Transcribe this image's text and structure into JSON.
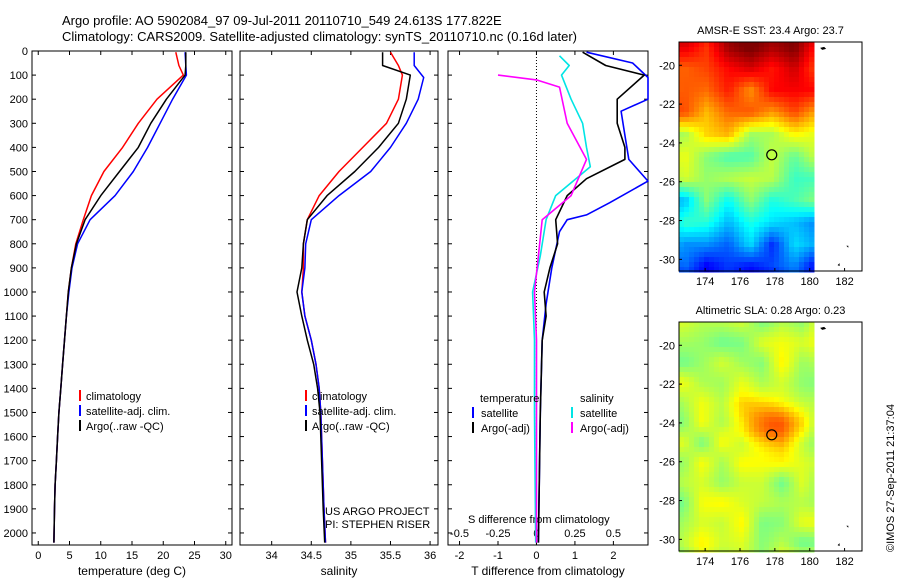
{
  "header": {
    "line1": "Argo profile: AO 5902084_97 09-Jul-2011 20110710_549 24.613S 177.822E",
    "line2": "Climatology: CARS2009. Satellite-adjusted climatology: synTS_20110710.nc (0.16d later)"
  },
  "side_label": "©IMOS 27-Sep-2011 21:37:04",
  "credit": [
    "US ARGO PROJECT",
    "PI: STEPHEN RISER"
  ],
  "colors": {
    "clim": "#ff0000",
    "sat": "#0000ff",
    "argo": "#000000",
    "sat_s": "#00e5e5",
    "argo_s": "#ff00ff"
  },
  "chart_data": [
    {
      "type": "line",
      "id": "temperature",
      "xlabel": "temperature (deg C)",
      "ylabel": "",
      "xlim": [
        -1,
        31
      ],
      "ylim": [
        2050,
        0
      ],
      "xticks": [
        0,
        5,
        10,
        15,
        20,
        25,
        30
      ],
      "yticks": [
        0,
        100,
        200,
        300,
        400,
        500,
        600,
        700,
        800,
        900,
        1000,
        1100,
        1200,
        1300,
        1400,
        1500,
        1600,
        1700,
        1800,
        1900,
        2000
      ],
      "legend": [
        "climatology",
        "satellite-adj. clim.",
        "Argo(..raw -QC)"
      ],
      "series": [
        {
          "name": "climatology",
          "color": "#ff0000",
          "points": [
            [
              22.0,
              5
            ],
            [
              22.5,
              60
            ],
            [
              23.2,
              100
            ],
            [
              19,
              200
            ],
            [
              16,
              300
            ],
            [
              13.5,
              400
            ],
            [
              10.5,
              500
            ],
            [
              8.5,
              600
            ],
            [
              7.2,
              700
            ],
            [
              6,
              800
            ],
            [
              5.3,
              900
            ],
            [
              4.8,
              1000
            ],
            [
              4.5,
              1100
            ],
            [
              4.2,
              1200
            ],
            [
              3.9,
              1300
            ],
            [
              3.6,
              1400
            ],
            [
              3.3,
              1500
            ],
            [
              3.1,
              1600
            ],
            [
              2.9,
              1700
            ],
            [
              2.7,
              1800
            ],
            [
              2.6,
              1900
            ],
            [
              2.5,
              2040
            ]
          ]
        },
        {
          "name": "satellite-adj. clim.",
          "color": "#0000ff",
          "points": [
            [
              23.5,
              5
            ],
            [
              23.6,
              60
            ],
            [
              23.7,
              100
            ],
            [
              21.5,
              200
            ],
            [
              19.5,
              300
            ],
            [
              17.5,
              400
            ],
            [
              15.2,
              500
            ],
            [
              12.3,
              600
            ],
            [
              8.3,
              700
            ],
            [
              6.3,
              800
            ],
            [
              5.4,
              900
            ],
            [
              4.9,
              1000
            ],
            [
              4.5,
              1100
            ],
            [
              4.2,
              1200
            ],
            [
              3.9,
              1300
            ],
            [
              3.6,
              1400
            ],
            [
              3.3,
              1500
            ],
            [
              3.1,
              1600
            ],
            [
              2.9,
              1700
            ],
            [
              2.7,
              1800
            ],
            [
              2.6,
              1900
            ],
            [
              2.5,
              2040
            ]
          ]
        },
        {
          "name": "Argo(..raw -QC)",
          "color": "#000000",
          "points": [
            [
              23.6,
              5
            ],
            [
              23.6,
              60
            ],
            [
              23.5,
              100
            ],
            [
              20.5,
              200
            ],
            [
              18,
              300
            ],
            [
              16,
              400
            ],
            [
              13,
              500
            ],
            [
              10,
              600
            ],
            [
              7.5,
              700
            ],
            [
              6.1,
              800
            ],
            [
              5.3,
              900
            ],
            [
              4.8,
              1000
            ],
            [
              4.5,
              1100
            ],
            [
              4.2,
              1200
            ],
            [
              3.9,
              1300
            ],
            [
              3.6,
              1400
            ],
            [
              3.3,
              1500
            ],
            [
              3.1,
              1600
            ],
            [
              2.9,
              1700
            ],
            [
              2.7,
              1800
            ],
            [
              2.6,
              1900
            ],
            [
              2.5,
              2040
            ]
          ]
        }
      ]
    },
    {
      "type": "line",
      "id": "salinity",
      "xlabel": "salinity",
      "ylabel": "",
      "xlim": [
        33.6,
        36.1
      ],
      "ylim": [
        2050,
        0
      ],
      "xticks": [
        34,
        34.5,
        35,
        35.5,
        36
      ],
      "legend": [
        "climatology",
        "satellite-adj. clim.",
        "Argo(..raw -QC)"
      ],
      "series": [
        {
          "name": "climatology",
          "color": "#ff0000",
          "points": [
            [
              35.5,
              5
            ],
            [
              35.6,
              60
            ],
            [
              35.65,
              100
            ],
            [
              35.6,
              200
            ],
            [
              35.45,
              300
            ],
            [
              35.15,
              400
            ],
            [
              34.85,
              500
            ],
            [
              34.6,
              600
            ],
            [
              34.45,
              700
            ],
            [
              34.4,
              800
            ],
            [
              34.4,
              900
            ],
            [
              34.38,
              1000
            ],
            [
              34.42,
              1100
            ],
            [
              34.5,
              1200
            ],
            [
              34.56,
              1300
            ],
            [
              34.6,
              1400
            ],
            [
              34.62,
              1500
            ],
            [
              34.64,
              1700
            ],
            [
              34.66,
              1900
            ],
            [
              34.68,
              2040
            ]
          ]
        },
        {
          "name": "satellite-adj. clim.",
          "color": "#0000ff",
          "points": [
            [
              35.8,
              5
            ],
            [
              35.8,
              60
            ],
            [
              35.92,
              110
            ],
            [
              35.85,
              200
            ],
            [
              35.7,
              300
            ],
            [
              35.5,
              400
            ],
            [
              35.25,
              500
            ],
            [
              34.85,
              600
            ],
            [
              34.5,
              700
            ],
            [
              34.43,
              800
            ],
            [
              34.42,
              900
            ],
            [
              34.38,
              1000
            ],
            [
              34.42,
              1100
            ],
            [
              34.5,
              1200
            ],
            [
              34.56,
              1300
            ],
            [
              34.6,
              1400
            ],
            [
              34.62,
              1500
            ],
            [
              34.64,
              1700
            ],
            [
              34.66,
              1900
            ],
            [
              34.68,
              2040
            ]
          ]
        },
        {
          "name": "Argo(..raw -QC)",
          "color": "#000000",
          "points": [
            [
              35.4,
              5
            ],
            [
              35.4,
              60
            ],
            [
              35.75,
              100
            ],
            [
              35.7,
              200
            ],
            [
              35.6,
              300
            ],
            [
              35.35,
              400
            ],
            [
              35.05,
              500
            ],
            [
              34.7,
              600
            ],
            [
              34.45,
              700
            ],
            [
              34.4,
              800
            ],
            [
              34.38,
              900
            ],
            [
              34.32,
              1000
            ],
            [
              34.38,
              1100
            ],
            [
              34.45,
              1200
            ],
            [
              34.53,
              1300
            ],
            [
              34.58,
              1400
            ],
            [
              34.61,
              1500
            ],
            [
              34.63,
              1700
            ],
            [
              34.65,
              1900
            ],
            [
              34.67,
              2040
            ]
          ]
        }
      ]
    },
    {
      "type": "line",
      "id": "difference",
      "xlabel": "T difference from climatology",
      "xlabel_top": "S difference from climatology",
      "xlim": [
        -2.3,
        2.9
      ],
      "ylim": [
        2050,
        0
      ],
      "xticks": [
        -2,
        -1,
        0,
        1,
        2
      ],
      "xticks_s": [
        -0.5,
        -0.25,
        0,
        0.25,
        0.5
      ],
      "xticks_s_labels": [
        "-0.5",
        "-0.25",
        "0",
        "0.25",
        "0.5"
      ],
      "legend_headers": [
        "temperature",
        "salinity"
      ],
      "legend": [
        "satellite",
        "Argo(-adj)",
        "satellite",
        "Argo(-adj)"
      ],
      "series": [
        {
          "name": "T satellite",
          "color": "#0000ff",
          "points": [
            [
              1.3,
              5
            ],
            [
              2.5,
              50
            ],
            [
              2.9,
              110
            ],
            [
              2.9,
              200
            ],
            [
              2.2,
              250
            ],
            [
              2.3,
              350
            ],
            [
              2.4,
              450
            ],
            [
              2.9,
              540
            ],
            [
              1.9,
              630
            ],
            [
              1.3,
              680
            ],
            [
              0.8,
              700
            ],
            [
              0.6,
              750
            ],
            [
              0.4,
              900
            ],
            [
              0.25,
              1050
            ],
            [
              0.15,
              1200
            ],
            [
              0.1,
              1500
            ],
            [
              0.05,
              2040
            ]
          ]
        },
        {
          "name": "T Argo(-adj)",
          "color": "#000000",
          "points": [
            [
              1.2,
              5
            ],
            [
              1.8,
              60
            ],
            [
              2.8,
              100
            ],
            [
              2.1,
              200
            ],
            [
              2.1,
              300
            ],
            [
              2.3,
              400
            ],
            [
              2.3,
              450
            ],
            [
              1.3,
              530
            ],
            [
              0.8,
              600
            ],
            [
              0.5,
              700
            ],
            [
              0.55,
              800
            ],
            [
              0.35,
              900
            ],
            [
              0.2,
              1000
            ],
            [
              0.25,
              1100
            ],
            [
              0.15,
              1200
            ],
            [
              0.1,
              1500
            ],
            [
              0.05,
              2040
            ]
          ]
        },
        {
          "name": "S satellite",
          "color": "#00e5e5",
          "points": [
            [
              0.6,
              20
            ],
            [
              0.85,
              60
            ],
            [
              0.65,
              100
            ],
            [
              0.9,
              200
            ],
            [
              1.2,
              300
            ],
            [
              1.3,
              400
            ],
            [
              1.4,
              480
            ],
            [
              0.5,
              600
            ],
            [
              0.25,
              700
            ],
            [
              0.1,
              850
            ],
            [
              -0.1,
              1000
            ],
            [
              -0.05,
              1200
            ],
            [
              -0.05,
              1500
            ],
            [
              -0.02,
              2040
            ]
          ]
        },
        {
          "name": "S Argo(-adj)",
          "color": "#ff00ff",
          "points": [
            [
              -1,
              100
            ],
            [
              0,
              120
            ],
            [
              0.6,
              150
            ],
            [
              0.8,
              300
            ],
            [
              1.3,
              450
            ],
            [
              0.9,
              600
            ],
            [
              0.15,
              700
            ],
            [
              0.05,
              850
            ],
            [
              -0.05,
              1000
            ],
            [
              0,
              1200
            ],
            [
              0,
              1500
            ],
            [
              0,
              2040
            ]
          ]
        }
      ]
    },
    {
      "type": "heatmap",
      "id": "sst",
      "title": "AMSR-E SST: 23.4 Argo: 23.7",
      "xlim": [
        172.5,
        183
      ],
      "ylim": [
        -30.6,
        -18.8
      ],
      "xticks": [
        174,
        176,
        178,
        180,
        182
      ],
      "yticks": [
        -20,
        -22,
        -24,
        -26,
        -28,
        -30
      ],
      "data_xlim": [
        172.5,
        180
      ],
      "marker": [
        177.822,
        -24.613
      ]
    },
    {
      "type": "heatmap",
      "id": "sla",
      "title": "Altimetric SLA: 0.28 Argo: 0.23",
      "xlim": [
        172.5,
        183
      ],
      "ylim": [
        -30.6,
        -18.8
      ],
      "xticks": [
        174,
        176,
        178,
        180,
        182
      ],
      "yticks": [
        -20,
        -22,
        -24,
        -26,
        -28,
        -30
      ],
      "data_xlim": [
        172.5,
        180
      ],
      "marker": [
        177.822,
        -24.613
      ]
    }
  ]
}
